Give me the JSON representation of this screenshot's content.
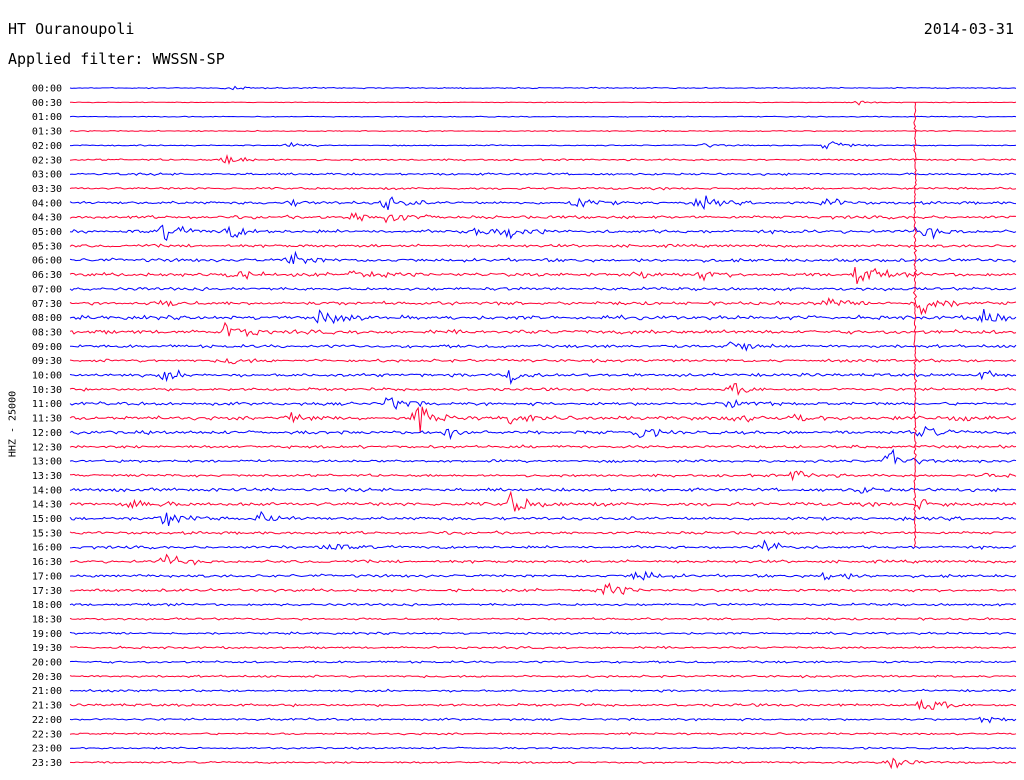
{
  "header": {
    "station": "HT Ouranoupoli",
    "date": "2014-03-31",
    "filter": "Applied filter: WWSSN-SP"
  },
  "chart_data": {
    "type": "line",
    "title": "HT Ouranoupoli",
    "ylabel": "HHZ - 25000",
    "colors": [
      "#0000ff",
      "#ff0033"
    ],
    "time_labels": [
      "00:00",
      "00:30",
      "01:00",
      "01:30",
      "02:00",
      "02:30",
      "03:00",
      "03:30",
      "04:00",
      "04:30",
      "05:00",
      "05:30",
      "06:00",
      "06:30",
      "07:00",
      "07:30",
      "08:00",
      "08:30",
      "09:00",
      "09:30",
      "10:00",
      "10:30",
      "11:00",
      "11:30",
      "12:00",
      "12:30",
      "13:00",
      "13:30",
      "14:00",
      "14:30",
      "15:00",
      "15:30",
      "16:00",
      "16:30",
      "17:00",
      "17:30",
      "18:00",
      "18:30",
      "19:00",
      "19:30",
      "20:00",
      "20:30",
      "21:00",
      "21:30",
      "22:00",
      "22:30",
      "23:00",
      "23:30"
    ],
    "trace_minutes": 30,
    "noise_level": [
      0.5,
      0.3,
      0.4,
      0.5,
      0.5,
      0.8,
      1.0,
      1.0,
      1.3,
      1.4,
      1.5,
      1.3,
      1.5,
      1.6,
      1.4,
      1.5,
      1.7,
      1.8,
      1.4,
      1.3,
      1.4,
      1.3,
      1.4,
      1.7,
      1.5,
      1.3,
      1.2,
      1.2,
      1.5,
      1.7,
      1.5,
      1.3,
      1.3,
      1.3,
      1.3,
      1.3,
      1.1,
      1.0,
      1.0,
      1.0,
      1.0,
      1.0,
      1.0,
      1.2,
      1.0,
      0.9,
      0.8,
      0.9
    ],
    "events": [
      [
        [
          5,
          2
        ]
      ],
      [
        [
          25,
          2
        ]
      ],
      [],
      [],
      [
        [
          24,
          7
        ],
        [
          7,
          2
        ],
        [
          20,
          2
        ]
      ],
      [
        [
          5,
          7
        ]
      ],
      [],
      [],
      [
        [
          10,
          8
        ],
        [
          16,
          6
        ],
        [
          20,
          6
        ],
        [
          24,
          5
        ],
        [
          7,
          3
        ]
      ],
      [
        [
          10,
          8
        ],
        [
          9,
          5
        ]
      ],
      [
        [
          3,
          8
        ],
        [
          5,
          7
        ],
        [
          13,
          8
        ],
        [
          14,
          8
        ],
        [
          27,
          7
        ]
      ],
      [],
      [
        [
          7,
          8
        ]
      ],
      [
        [
          5,
          7
        ],
        [
          9,
          6
        ],
        [
          25,
          13
        ],
        [
          18,
          4
        ],
        [
          20,
          4
        ]
      ],
      [],
      [
        [
          27,
          16
        ],
        [
          24,
          7
        ],
        [
          3,
          4
        ]
      ],
      [
        [
          8,
          9
        ],
        [
          29,
          11
        ]
      ],
      [
        [
          5,
          8
        ]
      ],
      [
        [
          21,
          8
        ]
      ],
      [
        [
          5,
          4
        ]
      ],
      [
        [
          3,
          5
        ],
        [
          14,
          10
        ],
        [
          29,
          4
        ]
      ],
      [
        [
          21,
          6
        ]
      ],
      [
        [
          10,
          10
        ],
        [
          21,
          7
        ]
      ],
      [
        [
          11,
          12
        ],
        [
          7,
          6
        ],
        [
          14,
          5
        ],
        [
          21,
          5
        ],
        [
          23,
          5
        ],
        [
          28,
          6
        ]
      ],
      [
        [
          12,
          5
        ],
        [
          18,
          6
        ],
        [
          27,
          7
        ]
      ],
      [],
      [
        [
          26,
          10
        ]
      ],
      [
        [
          23,
          6
        ],
        [
          29,
          5
        ]
      ],
      [
        [
          25,
          3
        ]
      ],
      [
        [
          2,
          6
        ],
        [
          14,
          12
        ],
        [
          27,
          5
        ]
      ],
      [
        [
          3,
          10
        ],
        [
          6,
          5
        ]
      ],
      [],
      [
        [
          8,
          7
        ],
        [
          22,
          9
        ]
      ],
      [
        [
          3,
          7
        ]
      ],
      [
        [
          18,
          8
        ],
        [
          24,
          8
        ]
      ],
      [
        [
          17,
          7
        ]
      ],
      [],
      [],
      [],
      [],
      [],
      [],
      [],
      [
        [
          27,
          10
        ]
      ],
      [
        [
          29,
          3
        ]
      ],
      [],
      [],
      [
        [
          26,
          10
        ]
      ]
    ],
    "long_event": {
      "minute": 26.8,
      "from_trace": 1,
      "to_trace": 32
    }
  }
}
